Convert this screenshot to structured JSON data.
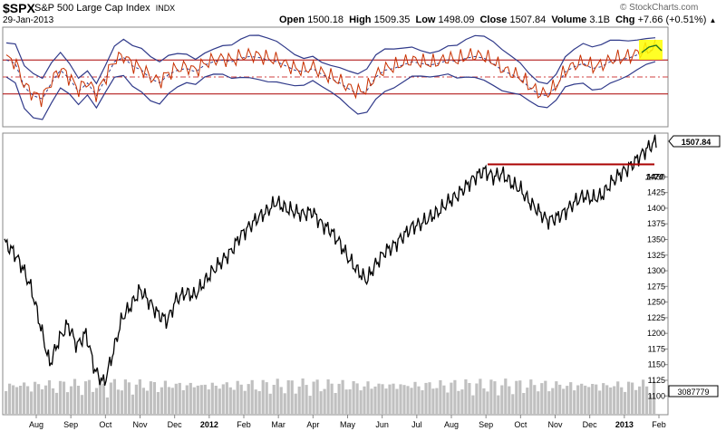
{
  "header": {
    "ticker": "$SPX",
    "name": "S&P 500 Large Cap Index",
    "exchange": "INDX",
    "date": "29-Jan-2013",
    "brand": "© StockCharts.com",
    "open_label": "Open",
    "open": "1500.18",
    "high_label": "High",
    "high": "1509.35",
    "low_label": "Low",
    "low": "1498.09",
    "close_label": "Close",
    "close": "1507.84",
    "volume_label": "Volume",
    "volume": "3.1B",
    "chg_label": "Chg",
    "chg": "+7.66 (+0.51%)"
  },
  "colors": {
    "price": "#000000",
    "resistance": "#aa0000",
    "band": "#303a8a",
    "osc": "#c83000",
    "volume": "#c0c0c0",
    "highlight": "#ffff00"
  },
  "chart_data": [
    {
      "type": "line",
      "panel": "price",
      "ylim": [
        1070,
        1520
      ],
      "yticks": [
        1100,
        1125,
        1150,
        1175,
        1200,
        1225,
        1250,
        1275,
        1300,
        1325,
        1350,
        1375,
        1400,
        1425,
        1450
      ],
      "last_value_label": "1507.84",
      "volume_label": "3087779",
      "annotation": {
        "text": "1470",
        "value": 1470
      },
      "x_labels": [
        "Aug",
        "Sep",
        "Oct",
        "Nov",
        "Dec",
        "2012",
        "Feb",
        "Mar",
        "Apr",
        "May",
        "Jun",
        "Jul",
        "Aug",
        "Sep",
        "Oct",
        "Nov",
        "Dec",
        "2013",
        "Feb"
      ],
      "series": [
        {
          "values": [
            1345,
            1330,
            1305,
            1270,
            1210,
            1150,
            1190,
            1215,
            1180,
            1200,
            1140,
            1120,
            1170,
            1225,
            1245,
            1270,
            1250,
            1230,
            1220,
            1255,
            1265,
            1260,
            1280,
            1300,
            1315,
            1330,
            1355,
            1370,
            1385,
            1395,
            1410,
            1400,
            1395,
            1390,
            1395,
            1375,
            1365,
            1345,
            1320,
            1300,
            1285,
            1310,
            1330,
            1340,
            1355,
            1370,
            1375,
            1385,
            1395,
            1410,
            1420,
            1435,
            1450,
            1460,
            1450,
            1455,
            1440,
            1430,
            1410,
            1395,
            1380,
            1385,
            1395,
            1410,
            1420,
            1415,
            1420,
            1440,
            1455,
            1465,
            1480,
            1495,
            1507
          ]
        }
      ]
    },
    {
      "type": "line",
      "panel": "indicator",
      "levels": [
        70,
        50,
        30
      ],
      "series": [
        {
          "values": [
            72,
            68,
            40,
            30,
            25,
            45,
            60,
            50,
            35,
            45,
            30,
            50,
            70,
            75,
            65,
            60,
            50,
            45,
            55,
            60,
            62,
            58,
            66,
            70,
            72,
            70,
            74,
            76,
            75,
            72,
            70,
            65,
            60,
            58,
            62,
            55,
            50,
            45,
            38,
            32,
            36,
            52,
            60,
            62,
            66,
            70,
            68,
            66,
            68,
            72,
            70,
            74,
            76,
            74,
            68,
            60,
            55,
            50,
            40,
            32,
            30,
            40,
            58,
            64,
            68,
            62,
            64,
            70,
            72,
            74,
            78,
            82,
            84
          ]
        }
      ]
    }
  ]
}
